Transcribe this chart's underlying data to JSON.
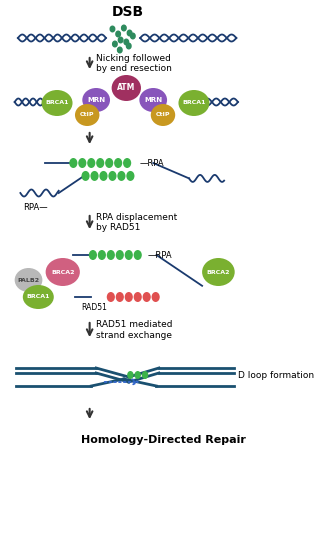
{
  "bg_color": "#ffffff",
  "dna_color": "#1a3a6e",
  "break_dot_color": "#2e8b5e",
  "rpa_dot_color": "#3cb34a",
  "rad51_dot_color": "#e05050",
  "arrow_color": "#333333",
  "title_dsb": "DSB",
  "label_nicking": "Nicking followed\nby end resection",
  "label_rpa": "RPA displacement\nby RAD51",
  "label_rad51": "RAD51 mediated\nstrand exchange",
  "label_dloop": "D loop formation",
  "label_hdr": "Homology-Directed Repair",
  "protein_ATM_color": "#a03060",
  "protein_MRN_color": "#8855bb",
  "protein_BRCA1_color": "#7ab030",
  "protein_CtIP_color": "#c89820",
  "protein_PALB2_color": "#b8b8b8",
  "protein_BRCA2_color": "#d06080",
  "teal_color": "#1a5070",
  "fig_width": 3.15,
  "fig_height": 5.5,
  "dpi": 100
}
